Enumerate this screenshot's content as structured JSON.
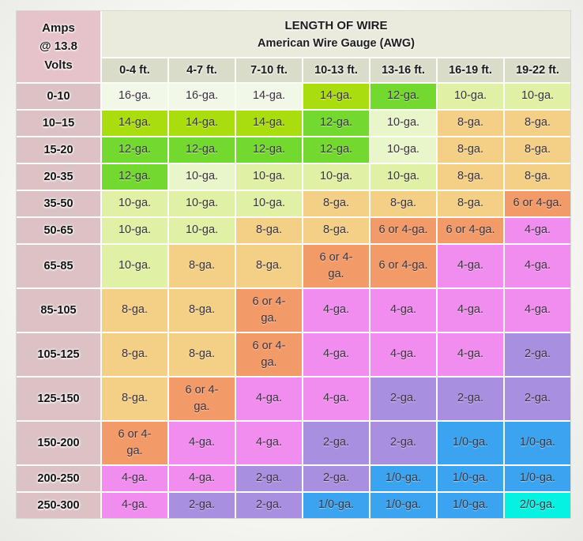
{
  "palette": {
    "mint": "#f2f8e7",
    "chartreuse": "#aadd0e",
    "green": "#73d92f",
    "paleYG": "#e0f1a5",
    "paleGreen": "#e9f6ca",
    "tan": "#f3d086",
    "salmon": "#f29b68",
    "pink": "#f08dee",
    "purple": "#a98fe0",
    "blue": "#3aa4f0",
    "cyan": "#05f2e2",
    "cornerPink": "#e6c3ca",
    "rowHeaderPink": "#dcc2c5",
    "titleBeige": "#eaeadd",
    "colHeaderBeige": "#dadcca",
    "gridLine": "#fbfbf7"
  },
  "chart_data": {
    "type": "table",
    "title": "LENGTH OF WIRE",
    "subtitle": "American Wire Gauge (AWG)",
    "corner_line1": "Amps",
    "corner_line2": "@ 13.8",
    "corner_line3": "Volts",
    "columns": [
      "0-4 ft.",
      "4-7 ft.",
      "7-10 ft.",
      "10-13 ft.",
      "13-16 ft.",
      "16-19 ft.",
      "19-22 ft."
    ],
    "row_labels": [
      "0-10",
      "10–15",
      "15-20",
      "20-35",
      "35-50",
      "50-65",
      "65-85",
      "85-105",
      "105-125",
      "125-150",
      "150-200",
      "200-250",
      "250-300"
    ],
    "cells": [
      [
        {
          "v": "16-ga.",
          "c": "mint"
        },
        {
          "v": "16-ga.",
          "c": "mint"
        },
        {
          "v": "14-ga.",
          "c": "mint"
        },
        {
          "v": "14-ga.",
          "c": "chartreuse"
        },
        {
          "v": "12-ga.",
          "c": "green"
        },
        {
          "v": "10-ga.",
          "c": "paleYG"
        },
        {
          "v": "10-ga.",
          "c": "paleYG"
        }
      ],
      [
        {
          "v": "14-ga.",
          "c": "chartreuse"
        },
        {
          "v": "14-ga.",
          "c": "chartreuse"
        },
        {
          "v": "14-ga.",
          "c": "chartreuse"
        },
        {
          "v": "12-ga.",
          "c": "green"
        },
        {
          "v": "10-ga.",
          "c": "paleGreen"
        },
        {
          "v": "8-ga.",
          "c": "tan"
        },
        {
          "v": "8-ga.",
          "c": "tan"
        }
      ],
      [
        {
          "v": "12-ga.",
          "c": "green"
        },
        {
          "v": "12-ga.",
          "c": "green"
        },
        {
          "v": "12-ga.",
          "c": "green"
        },
        {
          "v": "12-ga.",
          "c": "green"
        },
        {
          "v": "10-ga.",
          "c": "paleGreen"
        },
        {
          "v": "8-ga.",
          "c": "tan"
        },
        {
          "v": "8-ga.",
          "c": "tan"
        }
      ],
      [
        {
          "v": "12-ga.",
          "c": "green"
        },
        {
          "v": "10-ga.",
          "c": "paleGreen"
        },
        {
          "v": "10-ga.",
          "c": "paleYG"
        },
        {
          "v": "10-ga.",
          "c": "paleYG"
        },
        {
          "v": "10-ga.",
          "c": "paleYG"
        },
        {
          "v": "8-ga.",
          "c": "tan"
        },
        {
          "v": "8-ga.",
          "c": "tan"
        }
      ],
      [
        {
          "v": "10-ga.",
          "c": "paleYG"
        },
        {
          "v": "10-ga.",
          "c": "paleYG"
        },
        {
          "v": "10-ga.",
          "c": "paleYG"
        },
        {
          "v": "8-ga.",
          "c": "tan"
        },
        {
          "v": "8-ga.",
          "c": "tan"
        },
        {
          "v": "8-ga.",
          "c": "tan"
        },
        {
          "v": "6 or 4-ga.",
          "c": "salmon"
        }
      ],
      [
        {
          "v": "10-ga.",
          "c": "paleYG"
        },
        {
          "v": "10-ga.",
          "c": "paleYG"
        },
        {
          "v": "8-ga.",
          "c": "tan"
        },
        {
          "v": "8-ga.",
          "c": "tan"
        },
        {
          "v": "6 or 4-ga.",
          "c": "salmon"
        },
        {
          "v": "6 or 4-ga.",
          "c": "salmon"
        },
        {
          "v": "4-ga.",
          "c": "pink"
        }
      ],
      [
        {
          "v": "10-ga.",
          "c": "paleYG"
        },
        {
          "v": "8-ga.",
          "c": "tan"
        },
        {
          "v": "8-ga.",
          "c": "tan"
        },
        {
          "v": "6 or 4-ga.",
          "c": "salmon",
          "w": 1
        },
        {
          "v": "6 or 4-ga.",
          "c": "salmon"
        },
        {
          "v": "4-ga.",
          "c": "pink"
        },
        {
          "v": "4-ga.",
          "c": "pink"
        }
      ],
      [
        {
          "v": "8-ga.",
          "c": "tan"
        },
        {
          "v": "8-ga.",
          "c": "tan"
        },
        {
          "v": "6 or 4-ga.",
          "c": "salmon",
          "w": 1
        },
        {
          "v": "4-ga.",
          "c": "pink"
        },
        {
          "v": "4-ga.",
          "c": "pink"
        },
        {
          "v": "4-ga.",
          "c": "pink"
        },
        {
          "v": "4-ga.",
          "c": "pink"
        }
      ],
      [
        {
          "v": "8-ga.",
          "c": "tan"
        },
        {
          "v": "8-ga.",
          "c": "tan"
        },
        {
          "v": "6 or 4-ga.",
          "c": "salmon",
          "w": 1
        },
        {
          "v": "4-ga.",
          "c": "pink"
        },
        {
          "v": "4-ga.",
          "c": "pink"
        },
        {
          "v": "4-ga.",
          "c": "pink"
        },
        {
          "v": "2-ga.",
          "c": "purple"
        }
      ],
      [
        {
          "v": "8-ga.",
          "c": "tan"
        },
        {
          "v": "6 or 4-ga.",
          "c": "salmon",
          "w": 1
        },
        {
          "v": "4-ga.",
          "c": "pink"
        },
        {
          "v": "4-ga.",
          "c": "pink"
        },
        {
          "v": "2-ga.",
          "c": "purple"
        },
        {
          "v": "2-ga.",
          "c": "purple"
        },
        {
          "v": "2-ga.",
          "c": "purple"
        }
      ],
      [
        {
          "v": "6 or 4-ga.",
          "c": "salmon",
          "w": 1
        },
        {
          "v": "4-ga.",
          "c": "pink"
        },
        {
          "v": "4-ga.",
          "c": "pink"
        },
        {
          "v": "2-ga.",
          "c": "purple"
        },
        {
          "v": "2-ga.",
          "c": "purple"
        },
        {
          "v": "1/0-ga.",
          "c": "blue"
        },
        {
          "v": "1/0-ga.",
          "c": "blue"
        }
      ],
      [
        {
          "v": "4-ga.",
          "c": "pink"
        },
        {
          "v": "4-ga.",
          "c": "pink"
        },
        {
          "v": "2-ga.",
          "c": "purple"
        },
        {
          "v": "2-ga.",
          "c": "purple"
        },
        {
          "v": "1/0-ga.",
          "c": "blue"
        },
        {
          "v": "1/0-ga.",
          "c": "blue"
        },
        {
          "v": "1/0-ga.",
          "c": "blue"
        }
      ],
      [
        {
          "v": "4-ga.",
          "c": "pink"
        },
        {
          "v": "2-ga.",
          "c": "purple"
        },
        {
          "v": "2-ga.",
          "c": "purple"
        },
        {
          "v": "1/0-ga.",
          "c": "blue"
        },
        {
          "v": "1/0-ga.",
          "c": "blue"
        },
        {
          "v": "1/0-ga.",
          "c": "blue"
        },
        {
          "v": "2/0-ga.",
          "c": "cyan"
        }
      ]
    ]
  }
}
